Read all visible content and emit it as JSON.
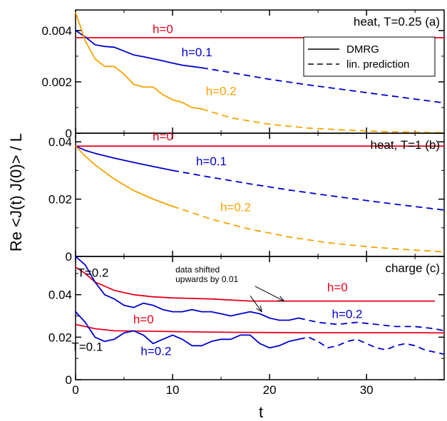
{
  "figure": {
    "ylabel": "Re <J(t) J(0)> / L",
    "xlabel": "t",
    "xlim": [
      0,
      38
    ],
    "xticks": [
      0,
      10,
      20,
      30
    ],
    "legend": {
      "position": "top-right of panel (a)",
      "entries": [
        {
          "label": "DMRG",
          "style": "solid"
        },
        {
          "label": "lin. prediction",
          "style": "dashed"
        }
      ]
    },
    "colors": {
      "red": "#e8001c",
      "blue": "#0000cc",
      "orange": "#f5a300",
      "black": "#000000"
    }
  },
  "chart_data": [
    {
      "type": "line",
      "panel": "a",
      "title": "heat, T=0.25 (a)",
      "ylim": [
        0,
        0.0048
      ],
      "yticks": [
        0,
        0.002,
        0.004
      ],
      "yticklabels": [
        "0",
        "0.002",
        "0.004"
      ],
      "series": [
        {
          "name": "h=0",
          "color": "red",
          "solid": [
            [
              0,
              0.00372
            ],
            [
              38,
              0.00372
            ]
          ],
          "dashed": []
        },
        {
          "name": "h=0.1",
          "color": "blue",
          "solid": [
            [
              0,
              0.004
            ],
            [
              1,
              0.00375
            ],
            [
              2,
              0.00345
            ],
            [
              3,
              0.00338
            ],
            [
              4,
              0.00335
            ],
            [
              5,
              0.0032
            ],
            [
              6,
              0.00305
            ],
            [
              7,
              0.00298
            ],
            [
              8,
              0.0029
            ],
            [
              9,
              0.00282
            ],
            [
              10,
              0.00273
            ],
            [
              11,
              0.00265
            ],
            [
              12,
              0.0026
            ],
            [
              13,
              0.00255
            ]
          ],
          "dashed": [
            [
              13,
              0.00255
            ],
            [
              16,
              0.00236
            ],
            [
              20,
              0.0021
            ],
            [
              24,
              0.00188
            ],
            [
              28,
              0.00168
            ],
            [
              32,
              0.00148
            ],
            [
              35,
              0.00133
            ],
            [
              38,
              0.00118
            ]
          ]
        },
        {
          "name": "h=0.2",
          "color": "orange",
          "solid": [
            [
              0,
              0.0047
            ],
            [
              1,
              0.0036
            ],
            [
              2,
              0.0029
            ],
            [
              3,
              0.0026
            ],
            [
              4,
              0.0026
            ],
            [
              5,
              0.0023
            ],
            [
              6,
              0.0019
            ],
            [
              7,
              0.0018
            ],
            [
              8,
              0.0018
            ],
            [
              9,
              0.0015
            ],
            [
              10,
              0.0013
            ],
            [
              11,
              0.0012
            ],
            [
              12,
              0.001
            ],
            [
              13,
              0.00095
            ]
          ],
          "dashed": [
            [
              13,
              0.00095
            ],
            [
              16,
              0.0006
            ],
            [
              20,
              0.00035
            ],
            [
              24,
              0.0002
            ],
            [
              28,
              0.00012
            ],
            [
              32,
              6e-05
            ],
            [
              35,
              4e-05
            ],
            [
              38,
              2e-05
            ]
          ]
        }
      ],
      "annotations": [
        {
          "text": "h=0",
          "x": 9.0,
          "y": 0.0039,
          "color": "red"
        },
        {
          "text": "h=0.1",
          "x": 12.5,
          "y": 0.003,
          "color": "blue"
        },
        {
          "text": "h=0.2",
          "x": 15.0,
          "y": 0.00148,
          "color": "orange"
        }
      ]
    },
    {
      "type": "line",
      "panel": "b",
      "title": "heat, T=1 (b)",
      "ylim": [
        0,
        0.043
      ],
      "yticks": [
        0,
        0.02,
        0.04
      ],
      "yticklabels": [
        "0",
        "0.02",
        "0.04"
      ],
      "series": [
        {
          "name": "h=0",
          "color": "red",
          "solid": [
            [
              0,
              0.0385
            ],
            [
              38,
              0.0385
            ]
          ],
          "dashed": []
        },
        {
          "name": "h=0.1",
          "color": "blue",
          "solid": [
            [
              0,
              0.0385
            ],
            [
              1,
              0.037
            ],
            [
              2,
              0.036
            ],
            [
              4,
              0.0343
            ],
            [
              6,
              0.0328
            ],
            [
              8,
              0.0314
            ],
            [
              10,
              0.03
            ]
          ],
          "dashed": [
            [
              10,
              0.03
            ],
            [
              14,
              0.0276
            ],
            [
              18,
              0.0253
            ],
            [
              22,
              0.0232
            ],
            [
              26,
              0.0213
            ],
            [
              30,
              0.0195
            ],
            [
              34,
              0.0178
            ],
            [
              38,
              0.0162
            ]
          ]
        },
        {
          "name": "h=0.2",
          "color": "orange",
          "solid": [
            [
              0,
              0.0385
            ],
            [
              1,
              0.035
            ],
            [
              2,
              0.032
            ],
            [
              4,
              0.027
            ],
            [
              6,
              0.023
            ],
            [
              8,
              0.02
            ],
            [
              10,
              0.0175
            ]
          ],
          "dashed": [
            [
              10,
              0.0175
            ],
            [
              14,
              0.013
            ],
            [
              18,
              0.0095
            ],
            [
              22,
              0.0068
            ],
            [
              26,
              0.0048
            ],
            [
              30,
              0.0034
            ],
            [
              34,
              0.0024
            ],
            [
              38,
              0.0016
            ]
          ]
        }
      ],
      "annotations": [
        {
          "text": "h=0",
          "x": 9.0,
          "y": 0.0405,
          "color": "red"
        },
        {
          "text": "h=0.1",
          "x": 14.0,
          "y": 0.0318,
          "color": "blue"
        },
        {
          "text": "h=0.2",
          "x": 16.5,
          "y": 0.0158,
          "color": "orange"
        }
      ]
    },
    {
      "type": "line",
      "panel": "c",
      "title": "charge (c)",
      "ylim": [
        0,
        0.058
      ],
      "yticks": [
        0,
        0.02,
        0.04
      ],
      "yticklabels": [
        "0",
        "0.02",
        "0.04"
      ],
      "series": [
        {
          "name": "T=0.2 h=0",
          "color": "red",
          "solid": [
            [
              0,
              0.053
            ],
            [
              1,
              0.05
            ],
            [
              2,
              0.046
            ],
            [
              4,
              0.042
            ],
            [
              6,
              0.04
            ],
            [
              8,
              0.039
            ],
            [
              10,
              0.0385
            ],
            [
              14,
              0.038
            ],
            [
              18,
              0.037
            ],
            [
              22,
              0.037
            ],
            [
              26,
              0.037
            ],
            [
              30,
              0.037
            ],
            [
              34,
              0.037
            ],
            [
              37,
              0.037
            ]
          ],
          "dashed": []
        },
        {
          "name": "T=0.2 h=0.2",
          "color": "blue",
          "solid": [
            [
              0,
              0.058
            ],
            [
              1,
              0.054
            ],
            [
              2,
              0.046
            ],
            [
              3,
              0.04
            ],
            [
              4,
              0.038
            ],
            [
              5,
              0.035
            ],
            [
              6,
              0.034
            ],
            [
              7,
              0.036
            ],
            [
              8,
              0.035
            ],
            [
              9,
              0.033
            ],
            [
              10,
              0.032
            ],
            [
              11,
              0.032
            ],
            [
              12,
              0.033
            ],
            [
              13,
              0.032
            ],
            [
              14,
              0.032
            ],
            [
              15,
              0.031
            ],
            [
              16,
              0.03
            ],
            [
              17,
              0.031
            ],
            [
              18,
              0.032
            ],
            [
              19,
              0.031
            ],
            [
              20,
              0.029
            ],
            [
              21,
              0.028
            ],
            [
              22,
              0.028
            ],
            [
              23,
              0.029
            ]
          ],
          "dashed": [
            [
              23,
              0.029
            ],
            [
              25,
              0.027
            ],
            [
              27,
              0.026
            ],
            [
              29,
              0.027
            ],
            [
              31,
              0.026
            ],
            [
              33,
              0.025
            ],
            [
              35,
              0.025
            ],
            [
              37,
              0.024
            ],
            [
              38,
              0.023
            ]
          ]
        },
        {
          "name": "T=0.1 h=0",
          "color": "red",
          "solid": [
            [
              0,
              0.026
            ],
            [
              2,
              0.024
            ],
            [
              4,
              0.023
            ],
            [
              8,
              0.0228
            ],
            [
              12,
              0.0225
            ],
            [
              16,
              0.0223
            ],
            [
              20,
              0.0222
            ],
            [
              24,
              0.0221
            ],
            [
              28,
              0.0221
            ],
            [
              32,
              0.0221
            ],
            [
              36,
              0.0221
            ],
            [
              38,
              0.022
            ]
          ],
          "dashed": []
        },
        {
          "name": "T=0.1 h=0.2",
          "color": "blue",
          "solid": [
            [
              0,
              0.032
            ],
            [
              1,
              0.027
            ],
            [
              2,
              0.02
            ],
            [
              3,
              0.018
            ],
            [
              4,
              0.019
            ],
            [
              5,
              0.022
            ],
            [
              6,
              0.023
            ],
            [
              7,
              0.021
            ],
            [
              8,
              0.017
            ],
            [
              9,
              0.019
            ],
            [
              10,
              0.021
            ],
            [
              11,
              0.019
            ],
            [
              12,
              0.016
            ],
            [
              13,
              0.016
            ],
            [
              14,
              0.018
            ],
            [
              15,
              0.019
            ],
            [
              16,
              0.019
            ],
            [
              17,
              0.021
            ],
            [
              18,
              0.021
            ],
            [
              19,
              0.017
            ],
            [
              20,
              0.015
            ],
            [
              21,
              0.016
            ],
            [
              22,
              0.018
            ],
            [
              23,
              0.019
            ]
          ],
          "dashed": [
            [
              23,
              0.019
            ],
            [
              24,
              0.02
            ],
            [
              25,
              0.018
            ],
            [
              26,
              0.015
            ],
            [
              27,
              0.016
            ],
            [
              28,
              0.018
            ],
            [
              29,
              0.019
            ],
            [
              30,
              0.017
            ],
            [
              31,
              0.015
            ],
            [
              32,
              0.014
            ],
            [
              33,
              0.016
            ],
            [
              34,
              0.017
            ],
            [
              35,
              0.016
            ],
            [
              36,
              0.014
            ],
            [
              37,
              0.013
            ],
            [
              38,
              0.012
            ]
          ]
        }
      ],
      "annotations": [
        {
          "text": "T=0.2",
          "x": 1.8,
          "y": 0.0485,
          "color": "black"
        },
        {
          "text": "T=0.1",
          "x": 1.2,
          "y": 0.0135,
          "color": "black"
        },
        {
          "text": "h=0",
          "x": 27.0,
          "y": 0.0415,
          "color": "red"
        },
        {
          "text": "h=0.2",
          "x": 28.0,
          "y": 0.029,
          "color": "blue"
        },
        {
          "text": "h=0",
          "x": 7.0,
          "y": 0.0265,
          "color": "red"
        },
        {
          "text": "h=0.2",
          "x": 8.3,
          "y": 0.0115,
          "color": "blue"
        },
        {
          "text": "data shifted",
          "x": 10.3,
          "y": 0.0505,
          "color": "black"
        },
        {
          "text": "upwards by 0.01",
          "x": 10.3,
          "y": 0.046,
          "color": "black"
        }
      ],
      "arrows": [
        {
          "from": [
            18.5,
            0.044
          ],
          "to": [
            21.5,
            0.037
          ]
        },
        {
          "from": [
            18.0,
            0.0395
          ],
          "to": [
            19.2,
            0.032
          ]
        }
      ]
    }
  ]
}
